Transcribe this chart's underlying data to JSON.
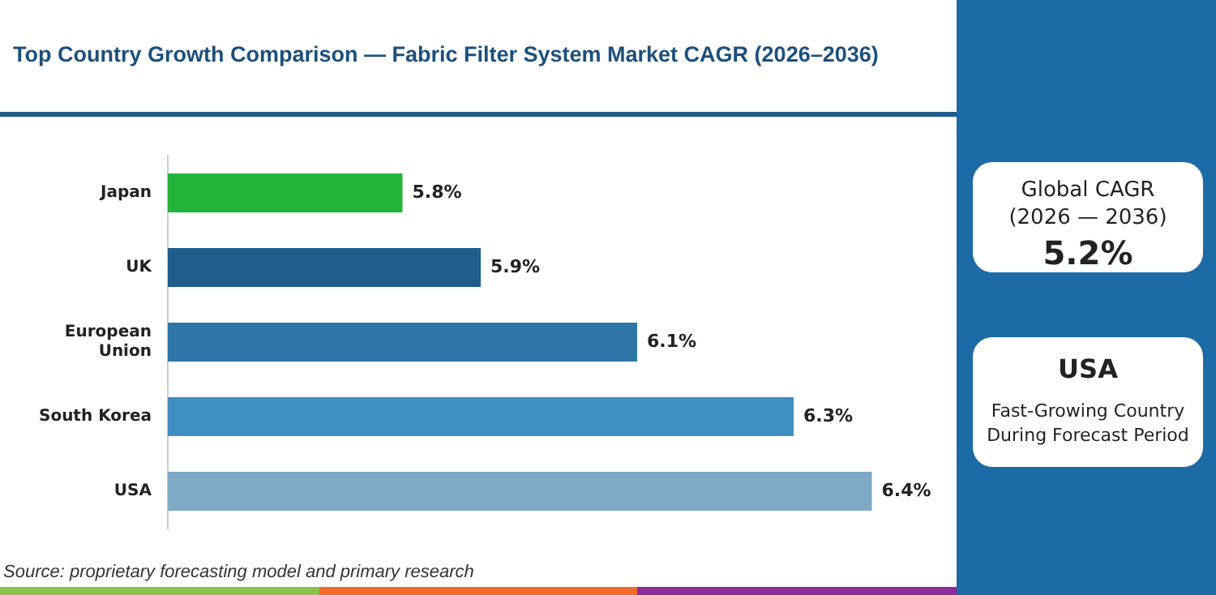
{
  "chart_data": [
    {
      "type": "bar",
      "orientation": "horizontal",
      "title": "Top Country Growth Comparison — Fabric Filter System Market CAGR (2026–2036)",
      "categories": [
        "Japan",
        "UK",
        "European Union",
        "South Korea",
        "USA"
      ],
      "values": [
        5.8,
        5.9,
        6.1,
        6.3,
        6.4
      ],
      "colors": [
        "#22b33a",
        "#1f5e8c",
        "#2e76a8",
        "#3f8fc2",
        "#7ea9c6"
      ],
      "value_labels": [
        "5.8%",
        "5.9%",
        "6.1%",
        "6.3%",
        "6.4%"
      ],
      "xlim": [
        5.5,
        6.5
      ],
      "tick_labels": "y",
      "legend": false,
      "annotations": [
        "Source: proprietary forecasting model and primary research"
      ]
    },
    {
      "type": "other",
      "annotations": [
        "Global CAGR",
        "(2026 — 2036)",
        "5.2%"
      ]
    },
    {
      "type": "other",
      "annotations": [
        "USA",
        "Fast-Growing Country",
        "During Forecast Period"
      ]
    }
  ]
}
